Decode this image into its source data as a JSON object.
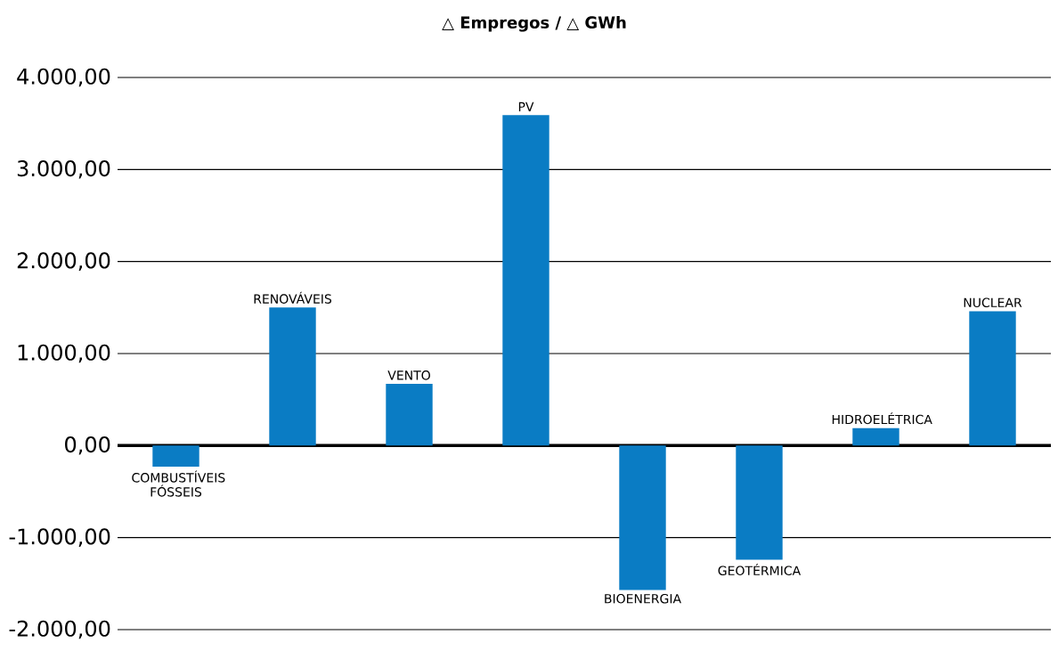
{
  "chart_data": {
    "type": "bar",
    "title": "△ Empregos / △ GWh",
    "categories": [
      "COMBUSTÍVEIS FÓSSEIS",
      "RENOVÁVEIS",
      "VENTO",
      "PV",
      "BIOENERGIA",
      "GEOTÉRMICA",
      "HIDROELÉTRICA",
      "NUCLEAR"
    ],
    "values": [
      -230,
      1500,
      670,
      3590,
      -1570,
      -1240,
      190,
      1460
    ],
    "color": "#0a7cc4",
    "ylim": [
      -2000,
      4000
    ],
    "yticks": [
      {
        "value": -2000,
        "label": "-2.000,00"
      },
      {
        "value": -1000,
        "label": "-1.000,00"
      },
      {
        "value": 0,
        "label": "0,00"
      },
      {
        "value": 1000,
        "label": "1.000,00"
      },
      {
        "value": 2000,
        "label": "2.000,00"
      },
      {
        "value": 3000,
        "label": "3.000,00"
      },
      {
        "value": 4000,
        "label": "4.000,00"
      }
    ],
    "grid": "y"
  }
}
